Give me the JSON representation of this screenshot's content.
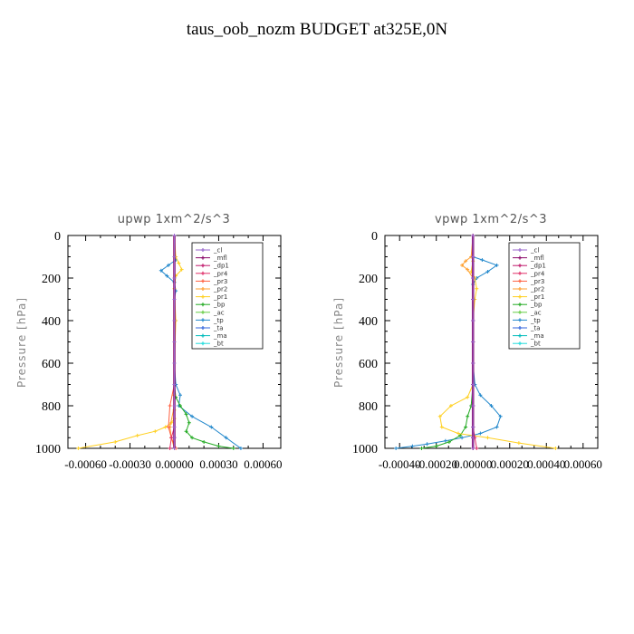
{
  "title": "taus_oob_nozm  BUDGET at325E,0N",
  "chart_data": [
    {
      "type": "line",
      "title": "upwp    1xm^2/s^3",
      "ylabel": "Pressure [hPa]",
      "xlabel": "",
      "xlim": [
        -0.00072,
        0.00072
      ],
      "ylim": [
        1000,
        0
      ],
      "x_ticks": [
        -0.0006,
        -0.0003,
        0.0,
        0.0003,
        0.0006
      ],
      "x_tick_labels": [
        "-0.00060",
        "-0.00030",
        "0.00000",
        "0.00030",
        "0.00060"
      ],
      "y_ticks": [
        0,
        200,
        400,
        600,
        800,
        1000
      ],
      "y_tick_labels": [
        "0",
        "200",
        "400",
        "600",
        "800",
        "1000"
      ],
      "legend_position": "top-right",
      "series": [
        {
          "name": "_cl",
          "color": "#9966cc",
          "marker": "+",
          "x": [
            0,
            0,
            0,
            0,
            0,
            0,
            0,
            0,
            0,
            0,
            0,
            0
          ],
          "y": [
            0,
            100,
            200,
            300,
            400,
            500,
            600,
            700,
            800,
            900,
            950,
            1000
          ]
        },
        {
          "name": "_mfl",
          "color": "#8b0a6a",
          "marker": "+",
          "x": [
            0,
            0,
            0,
            0,
            0,
            0,
            0,
            0,
            0,
            0,
            0,
            0
          ],
          "y": [
            0,
            100,
            200,
            300,
            400,
            500,
            600,
            700,
            800,
            900,
            950,
            1000
          ]
        },
        {
          "name": "_dp1",
          "color": "#c0186c",
          "marker": "+",
          "x": [
            0,
            0,
            0,
            0,
            0,
            0,
            0,
            0,
            0,
            0,
            0,
            0
          ],
          "y": [
            0,
            100,
            200,
            300,
            400,
            500,
            600,
            700,
            800,
            900,
            950,
            1000
          ]
        },
        {
          "name": "_pr4",
          "color": "#e0306a",
          "marker": "+",
          "x": [
            0,
            0,
            0,
            0,
            0,
            0,
            0,
            0,
            0,
            0,
            -2e-05,
            -3e-05
          ],
          "y": [
            0,
            100,
            200,
            300,
            400,
            500,
            600,
            700,
            800,
            900,
            950,
            1000
          ]
        },
        {
          "name": "_pr3",
          "color": "#ff6040",
          "marker": "+",
          "x": [
            0,
            0,
            0,
            0,
            0,
            0,
            0,
            0,
            -3e-05,
            -4e-05,
            -2e-05,
            1e-05
          ],
          "y": [
            0,
            100,
            200,
            300,
            400,
            500,
            600,
            700,
            800,
            900,
            950,
            1000
          ]
        },
        {
          "name": "_pr2",
          "color": "#ffa030",
          "marker": "+",
          "x": [
            0,
            0,
            0,
            0,
            0,
            0,
            0,
            0,
            0,
            -3e-05,
            -2e-05,
            0
          ],
          "y": [
            0,
            100,
            200,
            300,
            400,
            500,
            600,
            700,
            800,
            900,
            950,
            1000
          ]
        },
        {
          "name": "_pr1",
          "color": "#ffd020",
          "marker": "+",
          "x": [
            0,
            1e-05,
            3e-05,
            5e-05,
            1e-05,
            0,
            1e-05,
            0,
            0,
            0,
            0,
            -2e-05,
            -6e-05,
            -0.00013,
            -0.00025,
            -0.0004,
            -0.00065
          ],
          "y": [
            0,
            100,
            130,
            160,
            190,
            250,
            400,
            600,
            750,
            820,
            860,
            880,
            900,
            920,
            940,
            970,
            1000
          ]
        },
        {
          "name": "_bp",
          "color": "#22aa22",
          "marker": "+",
          "x": [
            0,
            0,
            0,
            0,
            0,
            1e-05,
            4e-05,
            8e-05,
            0.0001,
            8e-05,
            0.00012,
            0.0002,
            0.0003,
            0.0004
          ],
          "y": [
            0,
            100,
            200,
            400,
            700,
            760,
            800,
            840,
            880,
            920,
            950,
            970,
            990,
            1000
          ]
        },
        {
          "name": "_ac",
          "color": "#66cc44",
          "marker": "+",
          "x": [
            0,
            0,
            0,
            0,
            0,
            0,
            0
          ],
          "y": [
            0,
            200,
            400,
            600,
            800,
            900,
            1000
          ]
        },
        {
          "name": "_tp",
          "color": "#2288cc",
          "marker": "+",
          "x": [
            0,
            0,
            1e-05,
            -4e-05,
            -9e-05,
            -5e-05,
            0,
            1e-05,
            0,
            0,
            0,
            0,
            1e-05,
            4e-05,
            3e-05,
            0.00012,
            0.00025,
            0.00035,
            0.00045
          ],
          "y": [
            0,
            100,
            115,
            140,
            165,
            190,
            220,
            260,
            300,
            400,
            500,
            600,
            700,
            750,
            800,
            850,
            900,
            950,
            1000
          ]
        },
        {
          "name": "_ta",
          "color": "#3366dd",
          "marker": "+",
          "x": [
            0,
            0,
            0,
            0,
            0,
            0
          ],
          "y": [
            0,
            200,
            400,
            600,
            800,
            1000
          ]
        },
        {
          "name": "_ma",
          "color": "#00bbbb",
          "marker": "-",
          "x": [
            0,
            0,
            0,
            0,
            0,
            0
          ],
          "y": [
            0,
            200,
            400,
            600,
            800,
            1000
          ]
        },
        {
          "name": "_bt",
          "color": "#22dddd",
          "marker": "*",
          "x": [
            0,
            0,
            0,
            0,
            0,
            0
          ],
          "y": [
            0,
            200,
            400,
            600,
            800,
            1000
          ]
        }
      ]
    },
    {
      "type": "line",
      "title": "vpwp    1xm^2/s^3",
      "ylabel": "Pressure [hPa]",
      "xlabel": "",
      "xlim": [
        -0.00048,
        0.00068
      ],
      "ylim": [
        1000,
        0
      ],
      "x_ticks": [
        -0.0004,
        -0.0002,
        0.0,
        0.0002,
        0.0004,
        0.0006
      ],
      "x_tick_labels": [
        "-0.00040",
        "-0.00020",
        "0.00000",
        "0.00020",
        "0.00040",
        "0.00060"
      ],
      "y_ticks": [
        0,
        200,
        400,
        600,
        800,
        1000
      ],
      "y_tick_labels": [
        "0",
        "200",
        "400",
        "600",
        "800",
        "1000"
      ],
      "legend_position": "top-right",
      "series": [
        {
          "name": "_cl",
          "color": "#9966cc",
          "marker": "+",
          "x": [
            0,
            0,
            0,
            0,
            0,
            0,
            0,
            0,
            0,
            0,
            0,
            0
          ],
          "y": [
            0,
            100,
            200,
            300,
            400,
            500,
            600,
            700,
            800,
            900,
            950,
            1000
          ]
        },
        {
          "name": "_mfl",
          "color": "#8b0a6a",
          "marker": "+",
          "x": [
            0,
            0,
            0,
            0,
            0,
            0,
            0,
            0,
            0,
            0,
            0,
            0
          ],
          "y": [
            0,
            100,
            200,
            300,
            400,
            500,
            600,
            700,
            800,
            900,
            950,
            1000
          ]
        },
        {
          "name": "_dp1",
          "color": "#c0186c",
          "marker": "+",
          "x": [
            0,
            0,
            0,
            0,
            0,
            0,
            0,
            0,
            0,
            0,
            0,
            0
          ],
          "y": [
            0,
            100,
            200,
            300,
            400,
            500,
            600,
            700,
            800,
            900,
            950,
            1000
          ]
        },
        {
          "name": "_pr4",
          "color": "#e0306a",
          "marker": "+",
          "x": [
            0,
            0,
            0,
            0,
            0,
            0,
            0,
            0,
            0,
            0,
            1e-05,
            2e-05
          ],
          "y": [
            0,
            100,
            200,
            300,
            400,
            500,
            600,
            700,
            800,
            900,
            950,
            1000
          ]
        },
        {
          "name": "_pr3",
          "color": "#ff6040",
          "marker": "+",
          "x": [
            0,
            0,
            0,
            0,
            0,
            0,
            0,
            0,
            0,
            0,
            0,
            0
          ],
          "y": [
            0,
            100,
            200,
            300,
            400,
            500,
            600,
            700,
            800,
            900,
            950,
            1000
          ]
        },
        {
          "name": "_pr2",
          "color": "#ffa030",
          "marker": "+",
          "x": [
            0,
            -1e-05,
            -4e-05,
            -6e-05,
            -3e-05,
            0,
            0,
            0,
            0
          ],
          "y": [
            0,
            100,
            120,
            140,
            160,
            200,
            400,
            700,
            1000
          ]
        },
        {
          "name": "_pr1",
          "color": "#ffd020",
          "marker": "+",
          "x": [
            0,
            0,
            -1e-05,
            1e-05,
            2e-05,
            1e-05,
            0,
            0,
            0,
            -3e-05,
            -0.00012,
            -0.00018,
            -0.00017,
            -8e-05,
            8e-05,
            0.00025,
            0.00045
          ],
          "y": [
            0,
            120,
            170,
            200,
            250,
            300,
            400,
            600,
            700,
            760,
            800,
            850,
            900,
            930,
            950,
            975,
            1000
          ]
        },
        {
          "name": "_bp",
          "color": "#22aa22",
          "marker": "+",
          "x": [
            0,
            0,
            0,
            0,
            -1e-05,
            -3e-05,
            -4e-05,
            -7e-05,
            -0.00013,
            -0.0002,
            -0.00028
          ],
          "y": [
            0,
            200,
            400,
            700,
            800,
            850,
            900,
            940,
            970,
            990,
            1000
          ]
        },
        {
          "name": "_ac",
          "color": "#66cc44",
          "marker": "+",
          "x": [
            0,
            0,
            0,
            0,
            0,
            0,
            0
          ],
          "y": [
            0,
            200,
            400,
            600,
            800,
            900,
            1000
          ]
        },
        {
          "name": "_tp",
          "color": "#2288cc",
          "marker": "+",
          "x": [
            0,
            0,
            5e-05,
            0.00013,
            8e-05,
            2e-05,
            0,
            0,
            0,
            0,
            1e-05,
            4e-05,
            0.0001,
            0.00015,
            0.00013,
            4e-05,
            -6e-05,
            -0.00015,
            -0.00025,
            -0.00033,
            -0.00042
          ],
          "y": [
            0,
            100,
            115,
            140,
            170,
            200,
            230,
            300,
            400,
            600,
            700,
            750,
            800,
            850,
            900,
            930,
            950,
            965,
            980,
            990,
            1000
          ]
        },
        {
          "name": "_ta",
          "color": "#3366dd",
          "marker": "+",
          "x": [
            0,
            0,
            0,
            0,
            0,
            0
          ],
          "y": [
            0,
            200,
            400,
            600,
            800,
            1000
          ]
        },
        {
          "name": "_ma",
          "color": "#00bbbb",
          "marker": "-",
          "x": [
            0,
            0,
            0,
            0,
            0,
            0
          ],
          "y": [
            0,
            200,
            400,
            600,
            800,
            1000
          ]
        },
        {
          "name": "_bt",
          "color": "#22dddd",
          "marker": "*",
          "x": [
            0,
            0,
            0,
            0,
            0,
            0
          ],
          "y": [
            0,
            200,
            400,
            600,
            800,
            1000
          ]
        }
      ]
    }
  ]
}
